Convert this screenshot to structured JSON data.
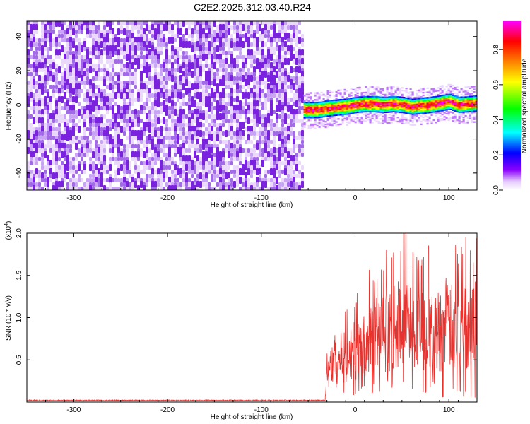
{
  "title": "C2E2.2025.312.03.40.R24",
  "chart_data": [
    {
      "type": "heatmap",
      "xlabel": "Height of straight line (km)",
      "ylabel": "Frequency (Hz)",
      "xlim": [
        -350,
        130
      ],
      "ylim": [
        -50,
        49
      ],
      "xticks": [
        -300,
        -200,
        -100,
        0,
        100
      ],
      "xtick_labels": [
        "-300",
        "-200",
        "-100",
        "0",
        "100"
      ],
      "yticks": [
        -40,
        -20,
        0,
        20,
        40
      ],
      "ytick_labels": [
        "-40",
        "-20",
        "0",
        "20",
        "40"
      ],
      "noise_region_x": [
        -350,
        -55
      ],
      "signal_x_start": -55,
      "signal_center_freq": [
        [
          -52,
          -3
        ],
        [
          -40,
          -3
        ],
        [
          -30,
          -2
        ],
        [
          -20,
          -1.5
        ],
        [
          -10,
          -1
        ],
        [
          0,
          0
        ],
        [
          10,
          0.5
        ],
        [
          20,
          0.5
        ],
        [
          30,
          0
        ],
        [
          40,
          0.5
        ],
        [
          50,
          0
        ],
        [
          60,
          -1
        ],
        [
          70,
          -0.5
        ],
        [
          80,
          0
        ],
        [
          90,
          1
        ],
        [
          100,
          2
        ],
        [
          110,
          0
        ],
        [
          120,
          0.5
        ],
        [
          130,
          1
        ]
      ],
      "signal_halfwidth_hz": 3,
      "colorbar": {
        "label": "Normalized spectral amplitude",
        "range": [
          0,
          1
        ],
        "ticks": [
          0.0,
          0.2,
          0.4,
          0.6,
          0.8
        ],
        "tick_labels": [
          "0.0",
          "0.2",
          "0.4",
          "0.6",
          "0.8"
        ],
        "colors": [
          "#ffffff",
          "#8a00ff",
          "#0000ff",
          "#00ffff",
          "#00ff00",
          "#ffff00",
          "#ff8000",
          "#ff0000",
          "#ff00ff"
        ]
      }
    },
    {
      "type": "line",
      "xlabel": "Height of straight line (km)",
      "ylabel": "SNR (10 * v/v)",
      "scale_label": "(x10",
      "scale_exponent": "4",
      "scale_suffix": ")",
      "xlim": [
        -350,
        130
      ],
      "ylim": [
        0,
        2.0
      ],
      "xticks": [
        -300,
        -200,
        -100,
        0,
        100
      ],
      "xtick_labels": [
        "-300",
        "-200",
        "-100",
        "0",
        "100"
      ],
      "yticks": [
        0.5,
        1.0,
        1.5,
        2.0
      ],
      "ytick_labels": [
        "0.5",
        "1.0",
        "1.5",
        "2.0"
      ],
      "series": [
        {
          "name": "SNR",
          "color": "#e8322e",
          "noise_floor": 0.02,
          "rise_x": -32,
          "envelope": [
            [
              -32,
              0.02
            ],
            [
              -30,
              0.3
            ],
            [
              -25,
              0.5
            ],
            [
              -15,
              0.55
            ],
            [
              -5,
              0.6
            ],
            [
              0,
              0.65
            ],
            [
              10,
              0.7
            ],
            [
              20,
              0.8
            ],
            [
              30,
              0.85
            ],
            [
              40,
              0.9
            ],
            [
              50,
              1.0
            ],
            [
              60,
              0.95
            ],
            [
              70,
              0.9
            ],
            [
              80,
              0.85
            ],
            [
              90,
              0.9
            ],
            [
              100,
              0.95
            ],
            [
              110,
              0.9
            ],
            [
              120,
              0.95
            ],
            [
              130,
              1.0
            ]
          ],
          "peaks": [
            [
              52,
              2.0
            ],
            [
              78,
              1.85
            ],
            [
              118,
              1.95
            ]
          ]
        }
      ]
    }
  ]
}
